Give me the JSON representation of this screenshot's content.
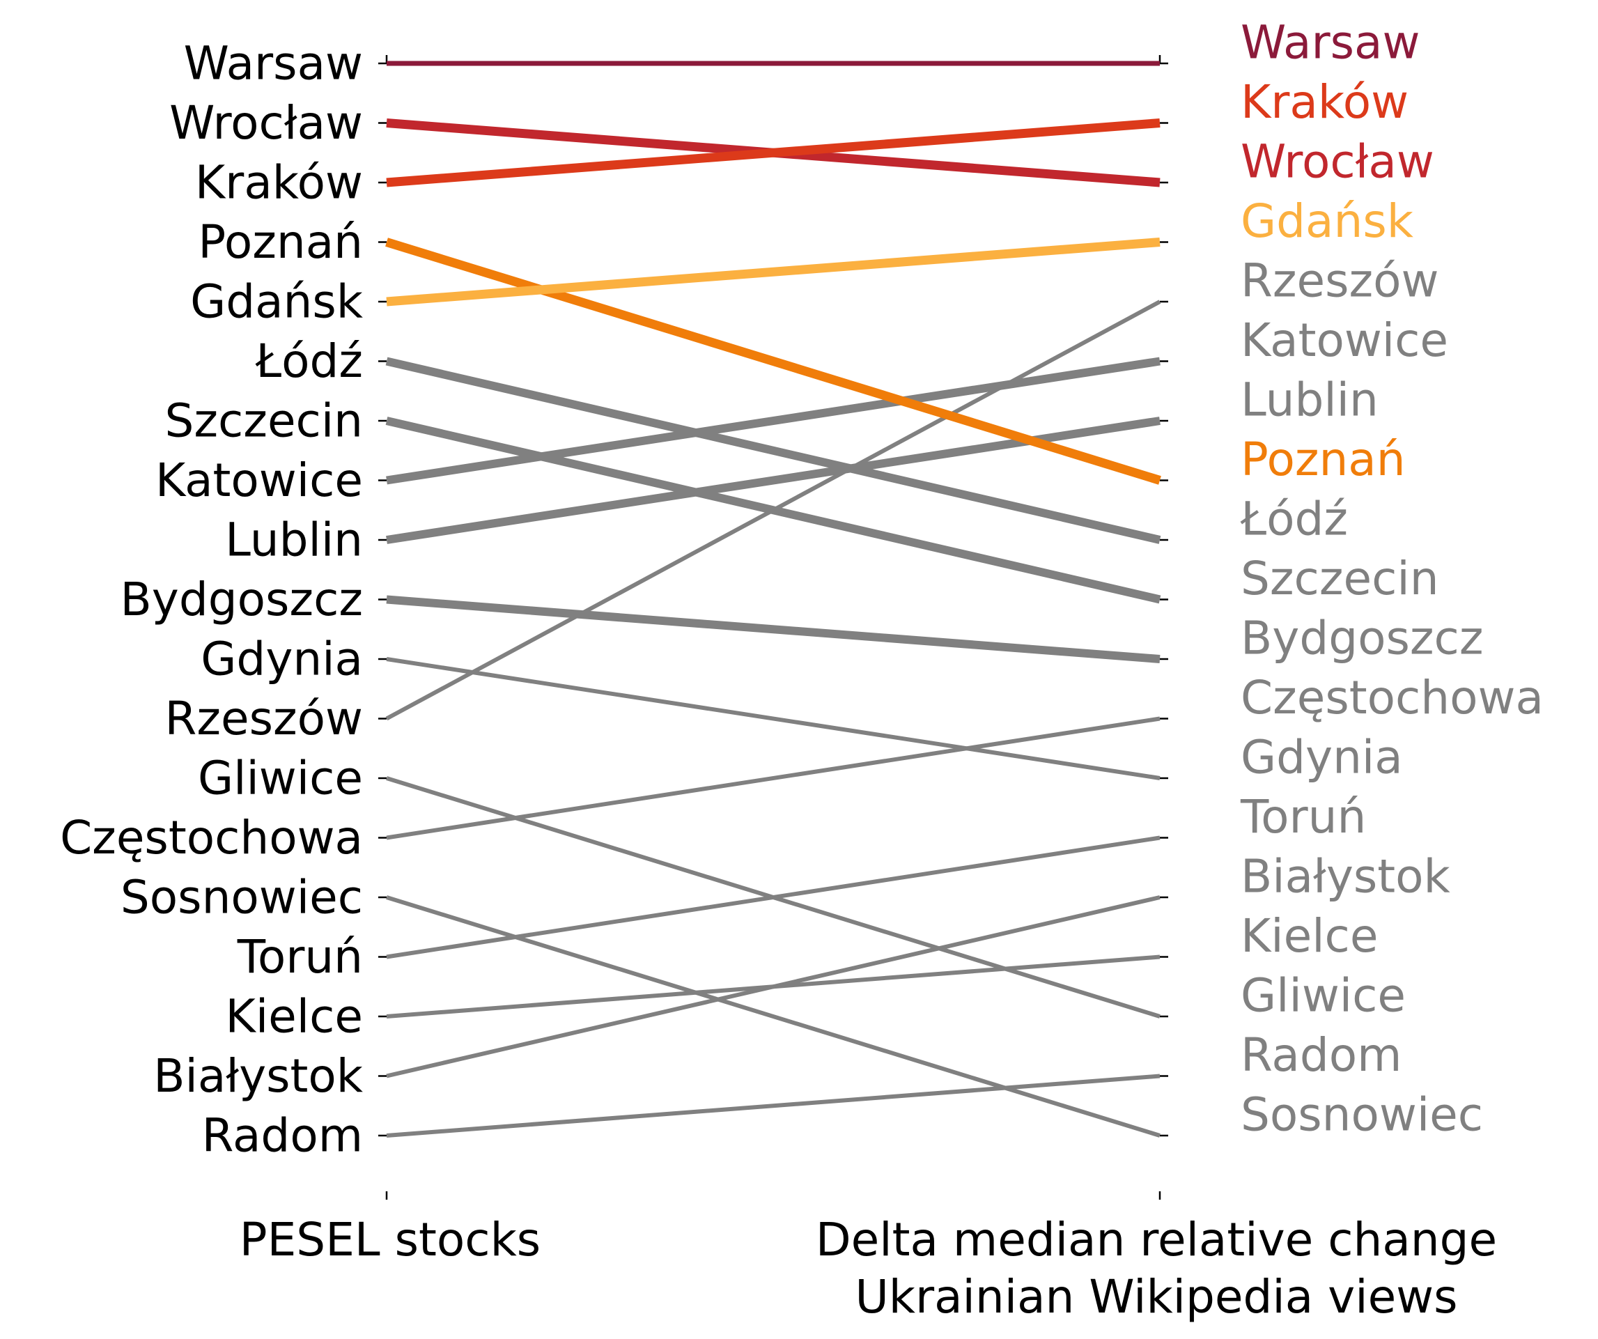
{
  "chart_data": {
    "type": "slope",
    "x": [
      "PESEL stocks",
      "Delta median relative change\nUkrainian Wikipedia views"
    ],
    "xlabels": [
      "PESEL stocks",
      "Delta median relative change",
      "Ukrainian Wikipedia views"
    ],
    "left_order": [
      "Warsaw",
      "Wrocław",
      "Kraków",
      "Poznań",
      "Gdańsk",
      "Łódź",
      "Szczecin",
      "Katowice",
      "Lublin",
      "Bydgoszcz",
      "Gdynia",
      "Rzeszów",
      "Gliwice",
      "Częstochowa",
      "Sosnowiec",
      "Toruń",
      "Kielce",
      "Białystok",
      "Radom"
    ],
    "right_order": [
      "Warsaw",
      "Kraków",
      "Wrocław",
      "Gdańsk",
      "Rzeszów",
      "Katowice",
      "Lublin",
      "Poznań",
      "Łódź",
      "Szczecin",
      "Bydgoszcz",
      "Częstochowa",
      "Gdynia",
      "Toruń",
      "Białystok",
      "Kielce",
      "Gliwice",
      "Radom",
      "Sosnowiec"
    ],
    "series": [
      {
        "name": "Warsaw",
        "values": [
          1,
          1
        ],
        "color": "#8b1a3a",
        "highlight": true
      },
      {
        "name": "Wrocław",
        "values": [
          2,
          3
        ],
        "color": "#c1272d",
        "highlight": true
      },
      {
        "name": "Kraków",
        "values": [
          3,
          2
        ],
        "color": "#dc3a1a",
        "highlight": true
      },
      {
        "name": "Poznań",
        "values": [
          4,
          8
        ],
        "color": "#f07d0a",
        "highlight": true
      },
      {
        "name": "Gdańsk",
        "values": [
          5,
          4
        ],
        "color": "#fbb040",
        "highlight": true
      },
      {
        "name": "Łódź",
        "values": [
          6,
          9
        ],
        "color": "#808080",
        "highlight": false
      },
      {
        "name": "Szczecin",
        "values": [
          7,
          10
        ],
        "color": "#808080",
        "highlight": false
      },
      {
        "name": "Katowice",
        "values": [
          8,
          6
        ],
        "color": "#808080",
        "highlight": false
      },
      {
        "name": "Lublin",
        "values": [
          9,
          7
        ],
        "color": "#808080",
        "highlight": false
      },
      {
        "name": "Bydgoszcz",
        "values": [
          10,
          11
        ],
        "color": "#808080",
        "highlight": false
      },
      {
        "name": "Gdynia",
        "values": [
          11,
          13
        ],
        "color": "#808080",
        "highlight": false
      },
      {
        "name": "Rzeszów",
        "values": [
          12,
          5
        ],
        "color": "#808080",
        "highlight": false
      },
      {
        "name": "Gliwice",
        "values": [
          13,
          17
        ],
        "color": "#808080",
        "highlight": false
      },
      {
        "name": "Częstochowa",
        "values": [
          14,
          12
        ],
        "color": "#808080",
        "highlight": false
      },
      {
        "name": "Sosnowiec",
        "values": [
          15,
          19
        ],
        "color": "#808080",
        "highlight": false
      },
      {
        "name": "Toruń",
        "values": [
          16,
          14
        ],
        "color": "#808080",
        "highlight": false
      },
      {
        "name": "Kielce",
        "values": [
          17,
          16
        ],
        "color": "#808080",
        "highlight": false
      },
      {
        "name": "Białystok",
        "values": [
          18,
          15
        ],
        "color": "#808080",
        "highlight": false
      },
      {
        "name": "Radom",
        "values": [
          19,
          18
        ],
        "color": "#808080",
        "highlight": false
      }
    ],
    "ylim": [
      1,
      19
    ],
    "y_inverted": true,
    "grid": false
  }
}
